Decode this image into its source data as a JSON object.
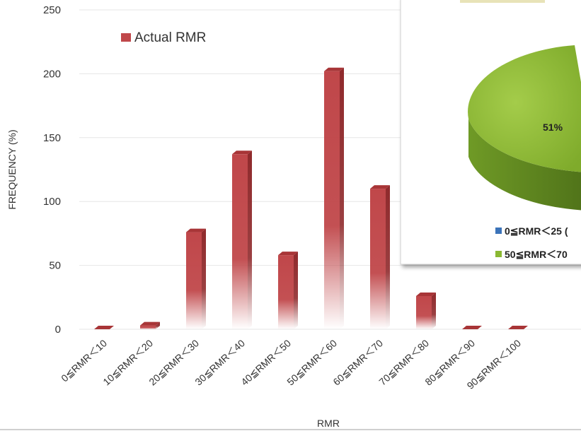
{
  "chart_data": [
    {
      "type": "bar",
      "ylabel": "FREQUENCY (%)",
      "xlabel": "RMR",
      "ylim": [
        0,
        250
      ],
      "yticks": [
        0,
        50,
        100,
        150,
        200,
        250
      ],
      "grid": true,
      "legend_position": "top-left",
      "categories": [
        "0≦RMR＜10",
        "10≦RMR＜20",
        "20≦RMR＜30",
        "30≦RMR＜40",
        "40≦RMR＜50",
        "50≦RMR＜60",
        "60≦RMR＜70",
        "70≦RMR＜80",
        "80≦RMR＜90",
        "90≦RMR＜100"
      ],
      "series": [
        {
          "name": "Actual RMR",
          "values": [
            0,
            3,
            76,
            137,
            58,
            202,
            110,
            26,
            0,
            0
          ]
        }
      ]
    },
    {
      "type": "pie",
      "slices": [
        {
          "label": "50≦RMR＜70",
          "value": 51,
          "value_label": "51%"
        }
      ],
      "legend": [
        "0≦RMR＜25 (",
        "50≦RMR＜70"
      ]
    }
  ],
  "colors": {
    "bar": "#c0474a",
    "bar_side": "#8f2a2c",
    "bar_top": "#a83537",
    "grid": "#e6e6e6",
    "pie_green": "#8ab832",
    "pie_green_dark": "#5d8421",
    "legend_blue": "#3b73b9"
  }
}
